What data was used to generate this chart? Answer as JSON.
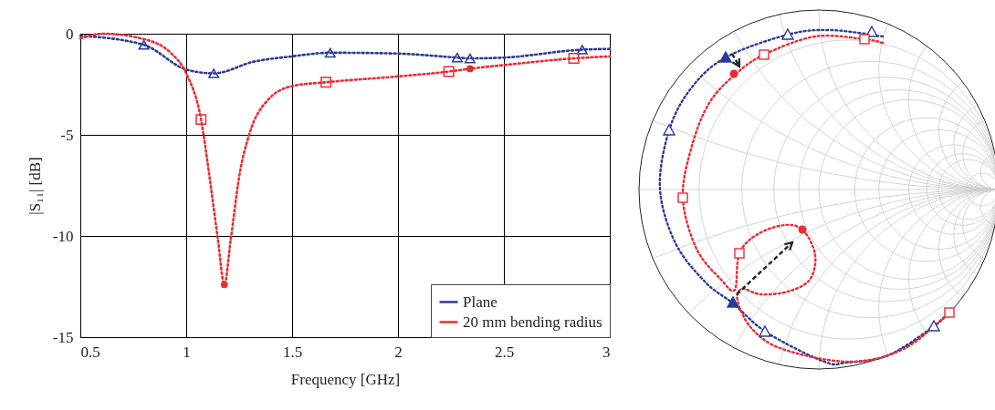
{
  "chart_data": {
    "type": "line",
    "xlabel": "Frequency [GHz]",
    "ylabel": "|S₁₁| [dB]",
    "xlim": [
      0.5,
      3
    ],
    "ylim": [
      -15,
      0
    ],
    "xticks": [
      0.5,
      1,
      1.5,
      2,
      2.5,
      3
    ],
    "yticks": [
      0,
      -5,
      -10,
      -15
    ],
    "grid": true,
    "legend": "bottom right",
    "line_style": "dotted",
    "series": [
      {
        "name": "Plane",
        "color": "#2b3a9b",
        "marker": "none",
        "x": [
          0.5,
          0.8,
          1.0,
          1.13,
          1.32,
          1.5,
          1.68,
          1.99,
          2.28,
          2.34,
          2.5,
          2.87,
          3.0
        ],
        "values": [
          -0.1,
          -0.55,
          -1.77,
          -1.96,
          -1.38,
          -1.12,
          -0.94,
          -0.98,
          -1.18,
          -1.22,
          -1.18,
          -0.79,
          -0.75
        ]
      },
      {
        "name": "20 mm bending radius",
        "color": "#ee2a35",
        "marker": "none",
        "x": [
          0.5,
          0.61,
          0.79,
          0.93,
          1.0,
          1.07,
          1.11,
          1.15,
          1.18,
          1.21,
          1.25,
          1.3,
          1.38,
          1.5,
          1.66,
          1.99,
          2.24,
          2.34,
          2.5,
          2.83,
          3.0
        ],
        "values": [
          -0.23,
          0,
          -0.24,
          -0.98,
          -1.96,
          -4.24,
          -7.07,
          -10.2,
          -12.4,
          -10.2,
          -7.07,
          -4.9,
          -3.34,
          -2.59,
          -2.4,
          -2.12,
          -1.87,
          -1.73,
          -1.55,
          -1.22,
          -1.12
        ]
      },
      {
        "color": "#2b3a9b",
        "type": "scatter",
        "marker": "triangle",
        "x": [
          0.8,
          1.13,
          1.68,
          2.28,
          2.34,
          2.87
        ],
        "values": [
          -0.55,
          -1.96,
          -0.94,
          -1.18,
          -1.22,
          -0.79
        ]
      },
      {
        "color": "#ee2a35",
        "type": "scatter",
        "marker": "square",
        "x": [
          1.07,
          1.66,
          2.24,
          2.83
        ],
        "values": [
          -4.24,
          -2.4,
          -1.87,
          -1.22
        ]
      },
      {
        "color": "#ee2a35",
        "type": "scatter",
        "marker": "circle",
        "x": [
          1.18,
          2.34
        ],
        "values": [
          -12.4,
          -1.73
        ]
      }
    ]
  }
}
